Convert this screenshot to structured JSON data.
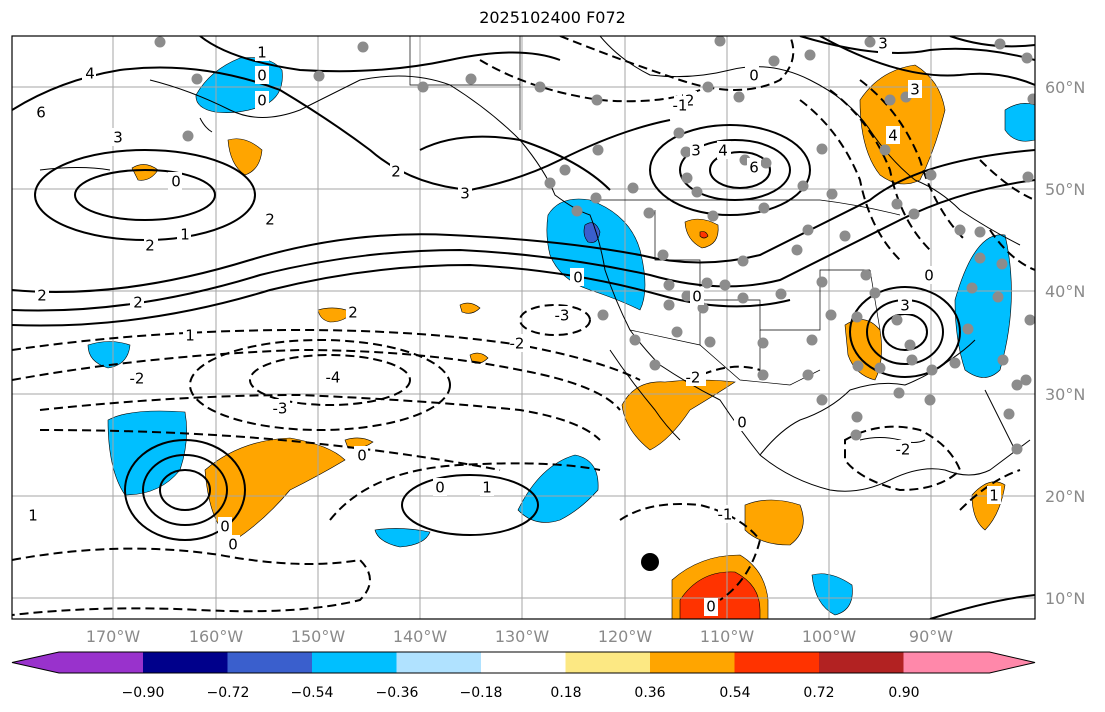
{
  "title": "2025102400 F072",
  "lat_labels": [
    "60°N",
    "50°N",
    "40°N",
    "30°N",
    "20°N",
    "10°N"
  ],
  "lon_labels": [
    "170°W",
    "160°W",
    "150°W",
    "140°W",
    "130°W",
    "120°W",
    "110°W",
    "100°W",
    "90°W"
  ],
  "colorbar": {
    "colors": [
      "#9932cc",
      "#00008b",
      "#3a5fcd",
      "#00bfff",
      "#b0e2ff",
      "#ffffff",
      "#fce883",
      "#ffa500",
      "#ff3300",
      "#b22222",
      "#ff88aa"
    ],
    "tick_labels": [
      "−0.90",
      "−0.72",
      "−0.54",
      "−0.36",
      "−0.18",
      "0.18",
      "0.36",
      "0.54",
      "0.72",
      "0.90"
    ]
  },
  "contour_labels": [
    "4",
    "6",
    "3",
    "2",
    "0",
    "1",
    "-2",
    "-3",
    "-4",
    "-1"
  ],
  "marker_legend": ""
}
